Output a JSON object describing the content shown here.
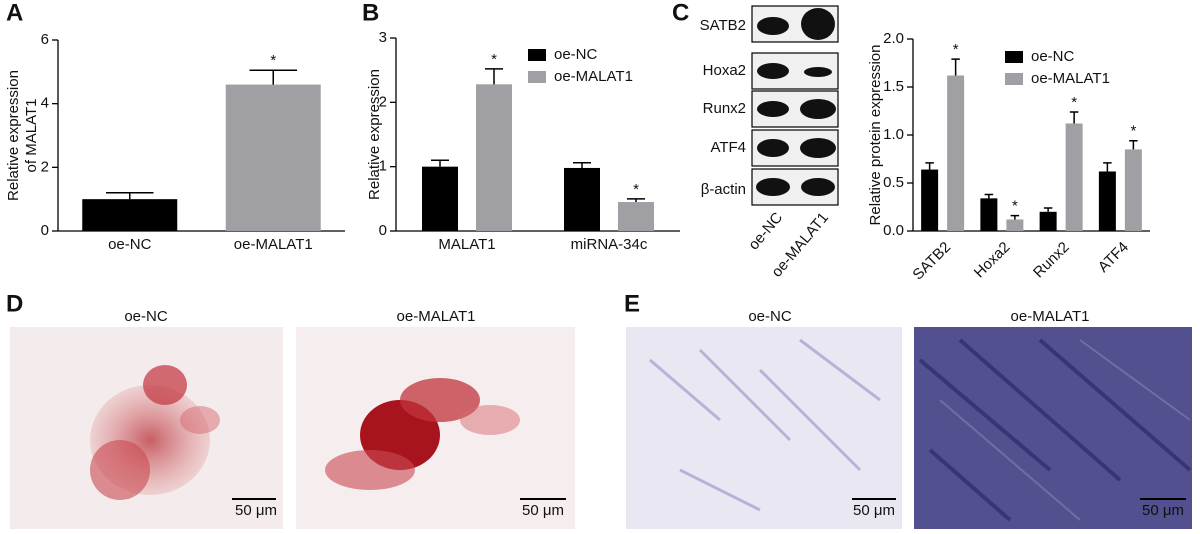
{
  "chart_data": [
    {
      "type": "bar",
      "ylabel": [
        "Relative expression",
        "of MALAT1"
      ],
      "categories": [
        "oe-NC",
        "oe-MALAT1"
      ],
      "values": [
        1.0,
        4.6
      ],
      "errors": [
        0.2,
        0.45
      ],
      "colors": [
        "#000000",
        "#a0a0a4"
      ],
      "annotations": [
        null,
        "*"
      ],
      "ylim": [
        0,
        6
      ],
      "yticks": [
        0,
        2,
        4,
        6
      ]
    },
    {
      "type": "bar",
      "ylabel": [
        "Relative expression"
      ],
      "categories": [
        "MALAT1",
        "miRNA-34c"
      ],
      "series": [
        {
          "name": "oe-NC",
          "color": "#000000",
          "values": [
            1.0,
            0.98
          ],
          "errors": [
            0.1,
            0.08
          ],
          "annotations": [
            null,
            null
          ]
        },
        {
          "name": "oe-MALAT1",
          "color": "#a0a0a4",
          "values": [
            2.28,
            0.45
          ],
          "errors": [
            0.24,
            0.05
          ],
          "annotations": [
            "*",
            "*"
          ]
        }
      ],
      "ylim": [
        0,
        3
      ],
      "yticks": [
        0,
        1,
        2,
        3
      ]
    },
    {
      "type": "bar",
      "ylabel": [
        "Relative protein expression"
      ],
      "categories": [
        "SATB2",
        "Hoxa2",
        "Runx2",
        "ATF4"
      ],
      "series": [
        {
          "name": "oe-NC",
          "color": "#000000",
          "values": [
            0.64,
            0.34,
            0.2,
            0.62
          ],
          "errors": [
            0.07,
            0.04,
            0.04,
            0.09
          ],
          "annotations": [
            null,
            null,
            null,
            null
          ]
        },
        {
          "name": "oe-MALAT1",
          "color": "#a0a0a4",
          "values": [
            1.62,
            0.12,
            1.12,
            0.85
          ],
          "errors": [
            0.17,
            0.04,
            0.12,
            0.09
          ],
          "annotations": [
            "*",
            "*",
            "*",
            "*"
          ]
        }
      ],
      "ylim": [
        0,
        2.0
      ],
      "yticks": [
        {
          "value": 0,
          "label": "0.0"
        },
        0.5,
        {
          "value": 1,
          "label": "1.0"
        },
        1.5,
        {
          "value": 2,
          "label": "2.0"
        }
      ]
    }
  ],
  "panels": [
    "A",
    "B",
    "C",
    "D",
    "E"
  ],
  "blot": {
    "rows": [
      "SATB2",
      "Hoxa2",
      "Runx2",
      "ATF4",
      "β-actin"
    ],
    "lanes": [
      "oe-NC",
      "oe-MALAT1"
    ]
  },
  "micrographs": {
    "D": [
      "oe-NC",
      "oe-MALAT1"
    ],
    "E": [
      "oe-NC",
      "oe-MALAT1"
    ],
    "scale_bar": "50 μm"
  }
}
